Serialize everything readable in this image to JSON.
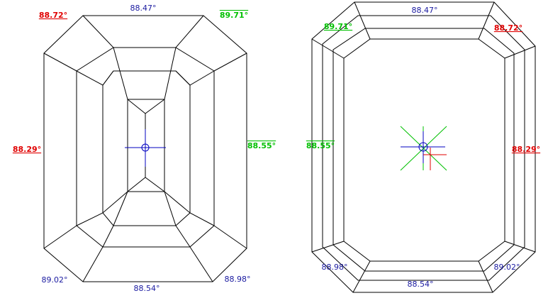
{
  "views": [
    {
      "labels": [
        {
          "text": "88.72°",
          "color": "#e00000"
        },
        {
          "text": "88.47°",
          "color": "#1a1aa0"
        },
        {
          "text": "89.71°",
          "color": "#00c000"
        },
        {
          "text": "88.29°",
          "color": "#e00000"
        },
        {
          "text": "88.55°",
          "color": "#00c000"
        },
        {
          "text": "89.02°",
          "color": "#1a1aa0"
        },
        {
          "text": "88.54°",
          "color": "#1a1aa0"
        },
        {
          "text": "88.98°",
          "color": "#1a1aa0"
        }
      ]
    },
    {
      "labels": [
        {
          "text": "88.47°",
          "color": "#1a1aa0"
        },
        {
          "text": "89.71°",
          "color": "#00c000"
        },
        {
          "text": "88.72°",
          "color": "#e00000"
        },
        {
          "text": "88.55°",
          "color": "#00c000"
        },
        {
          "text": "88.29°",
          "color": "#e00000"
        },
        {
          "text": "88.98°",
          "color": "#1a1aa0"
        },
        {
          "text": "89.02°",
          "color": "#1a1aa0"
        },
        {
          "text": "88.54°",
          "color": "#1a1aa0"
        }
      ]
    }
  ]
}
